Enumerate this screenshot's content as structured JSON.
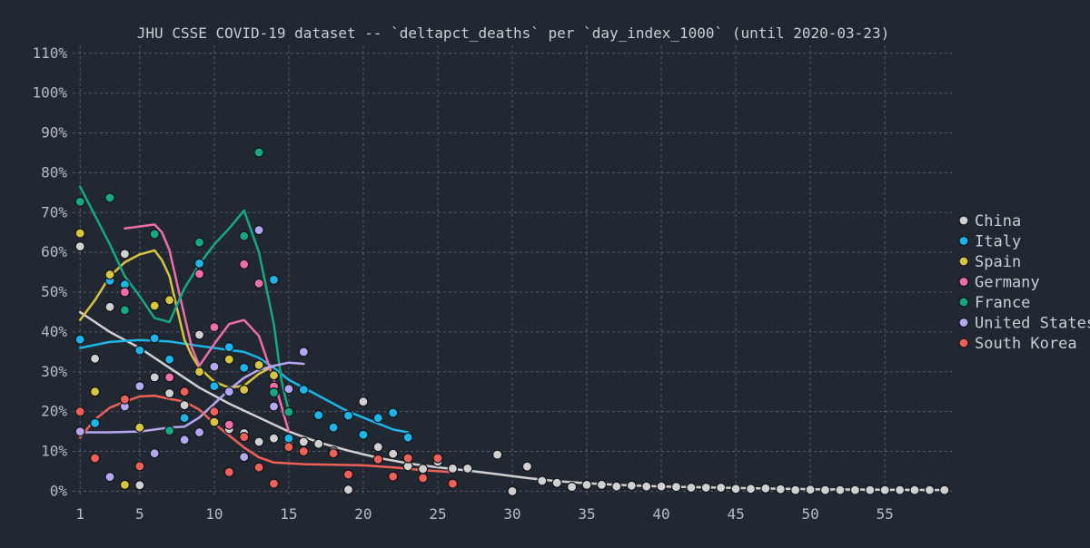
{
  "chart_data": {
    "type": "scatter",
    "title": "JHU CSSE COVID-19 dataset -- `deltapct_deaths` per `day_index_1000` (until 2020-03-23)",
    "xlabel": "",
    "ylabel": "",
    "xlim": [
      0.5,
      59.5
    ],
    "ylim": [
      -1.5,
      112
    ],
    "x_ticks": [
      1,
      5,
      10,
      15,
      20,
      25,
      30,
      35,
      40,
      45,
      50,
      55
    ],
    "y_ticks": [
      0,
      10,
      20,
      30,
      40,
      50,
      60,
      70,
      80,
      90,
      100,
      110
    ],
    "y_tick_labels": [
      "0%",
      "10%",
      "20%",
      "30%",
      "40%",
      "50%",
      "60%",
      "70%",
      "80%",
      "90%",
      "100%",
      "110%"
    ],
    "x_tick_labels": [
      "1",
      "5",
      "10",
      "15",
      "20",
      "25",
      "30",
      "35",
      "40",
      "45",
      "50",
      "55"
    ],
    "grid": true,
    "legend_position": "right",
    "series": [
      {
        "name": "China",
        "color": "#d0d0d0",
        "points": [
          [
            1,
            61.5
          ],
          [
            2,
            33.3
          ],
          [
            3,
            46.3
          ],
          [
            4,
            59.6
          ],
          [
            5,
            1.5
          ],
          [
            6,
            28.6
          ],
          [
            7,
            24.6
          ],
          [
            8,
            21.6
          ],
          [
            9,
            39.3
          ],
          [
            10,
            17.3
          ],
          [
            11,
            15.6
          ],
          [
            12,
            14.6
          ],
          [
            13,
            12.4
          ],
          [
            14,
            13.3
          ],
          [
            15,
            12
          ],
          [
            16,
            12.4
          ],
          [
            17,
            11.9
          ],
          [
            18,
            10
          ],
          [
            19,
            0.4
          ],
          [
            20,
            22.5
          ],
          [
            21,
            11.1
          ],
          [
            22,
            9.4
          ],
          [
            23,
            6.3
          ],
          [
            24,
            5.6
          ],
          [
            25,
            7.4
          ],
          [
            26,
            5.7
          ],
          [
            27,
            5.7
          ],
          [
            29,
            9.2
          ],
          [
            30,
            0
          ],
          [
            31,
            6.2
          ],
          [
            32,
            2.6
          ],
          [
            33,
            2.1
          ],
          [
            34,
            1.1
          ],
          [
            35,
            1.6
          ],
          [
            36,
            1.6
          ],
          [
            37,
            1.2
          ],
          [
            38,
            1.4
          ],
          [
            39,
            1.2
          ],
          [
            40,
            1.2
          ],
          [
            41,
            1.1
          ],
          [
            42,
            0.9
          ],
          [
            43,
            0.9
          ],
          [
            44,
            0.9
          ],
          [
            45,
            0.6
          ],
          [
            46,
            0.6
          ],
          [
            47,
            0.7
          ],
          [
            48,
            0.5
          ],
          [
            49,
            0.3
          ],
          [
            50,
            0.4
          ],
          [
            51,
            0.3
          ],
          [
            52,
            0.3
          ],
          [
            53,
            0.3
          ],
          [
            54,
            0.3
          ],
          [
            55,
            0.3
          ],
          [
            56,
            0.3
          ],
          [
            57,
            0.3
          ],
          [
            58,
            0.3
          ],
          [
            59,
            0.3
          ]
        ],
        "trend": [
          [
            1,
            45
          ],
          [
            3,
            40
          ],
          [
            5,
            36
          ],
          [
            7,
            31
          ],
          [
            9,
            26
          ],
          [
            11,
            22
          ],
          [
            13,
            18.5
          ],
          [
            15,
            15
          ],
          [
            17,
            12.3
          ],
          [
            19,
            10.2
          ],
          [
            21,
            8.4
          ],
          [
            23,
            7
          ],
          [
            25,
            6
          ],
          [
            27,
            5.2
          ],
          [
            29,
            4.3
          ],
          [
            31,
            3.3
          ],
          [
            33,
            2.5
          ],
          [
            35,
            2
          ],
          [
            37,
            1.6
          ],
          [
            40,
            1.2
          ],
          [
            45,
            0.8
          ],
          [
            50,
            0.5
          ],
          [
            55,
            0.4
          ],
          [
            59,
            0.3
          ]
        ]
      },
      {
        "name": "Italy",
        "color": "#1cb5ea",
        "points": [
          [
            1,
            38.1
          ],
          [
            2,
            17.1
          ],
          [
            3,
            52.9
          ],
          [
            4,
            51.9
          ],
          [
            5,
            35.4
          ],
          [
            6,
            38.4
          ],
          [
            7,
            33.1
          ],
          [
            8,
            18.4
          ],
          [
            9,
            57.2
          ],
          [
            10,
            26.4
          ],
          [
            11,
            36.2
          ],
          [
            12,
            31
          ],
          [
            13,
            31.7
          ],
          [
            14,
            53.1
          ],
          [
            15,
            13.3
          ],
          [
            16,
            25.5
          ],
          [
            17,
            19.1
          ],
          [
            18,
            16
          ],
          [
            19,
            19
          ],
          [
            20,
            14.2
          ],
          [
            21,
            18.4
          ],
          [
            22,
            19.7
          ],
          [
            23,
            13.5
          ]
        ],
        "trend": [
          [
            1,
            36
          ],
          [
            3,
            37.5
          ],
          [
            5,
            38
          ],
          [
            7,
            37.6
          ],
          [
            9,
            36.5
          ],
          [
            11,
            35.5
          ],
          [
            12,
            35
          ],
          [
            13,
            33.5
          ],
          [
            14,
            31
          ],
          [
            15,
            28
          ],
          [
            17,
            24
          ],
          [
            19,
            20
          ],
          [
            21,
            17
          ],
          [
            22,
            15.5
          ],
          [
            23,
            14.8
          ]
        ]
      },
      {
        "name": "Spain",
        "color": "#d7c540",
        "points": [
          [
            1,
            64.8
          ],
          [
            2,
            25
          ],
          [
            3,
            54.4
          ],
          [
            4,
            1.6
          ],
          [
            5,
            16
          ],
          [
            6,
            46.6
          ],
          [
            7,
            48
          ],
          [
            8,
            25
          ],
          [
            9,
            30
          ],
          [
            10,
            17.4
          ],
          [
            11,
            33.1
          ],
          [
            12,
            25.5
          ],
          [
            13,
            31.7
          ],
          [
            14,
            29.1
          ]
        ],
        "trend": [
          [
            1,
            43
          ],
          [
            2,
            48
          ],
          [
            3,
            54
          ],
          [
            4,
            57.5
          ],
          [
            5,
            59.5
          ],
          [
            6,
            60.5
          ],
          [
            6.5,
            58
          ],
          [
            7,
            54
          ],
          [
            7.5,
            46
          ],
          [
            8,
            38
          ],
          [
            8.5,
            34
          ],
          [
            9,
            31
          ],
          [
            10,
            27.5
          ],
          [
            11,
            26
          ],
          [
            12,
            26.5
          ],
          [
            13,
            29.5
          ],
          [
            14,
            31.5
          ]
        ]
      },
      {
        "name": "Germany",
        "color": "#ee6ea8",
        "points": [
          [
            4,
            50
          ],
          [
            7,
            28.6
          ],
          [
            9,
            54.6
          ],
          [
            10,
            41.2
          ],
          [
            11,
            16.7
          ],
          [
            12,
            57
          ],
          [
            13,
            52.2
          ],
          [
            14,
            26.3
          ],
          [
            15,
            11.1
          ]
        ],
        "trend": [
          [
            4,
            66
          ],
          [
            5,
            66.5
          ],
          [
            6,
            67
          ],
          [
            6.5,
            65
          ],
          [
            7,
            60.5
          ],
          [
            8,
            44
          ],
          [
            8.5,
            36
          ],
          [
            9,
            31.5
          ],
          [
            10,
            37
          ],
          [
            11,
            42
          ],
          [
            12,
            43
          ],
          [
            13,
            39
          ],
          [
            14,
            28
          ],
          [
            15,
            15
          ]
        ]
      },
      {
        "name": "France",
        "color": "#16a883",
        "points": [
          [
            1,
            72.7
          ],
          [
            3,
            73.7
          ],
          [
            4,
            45.5
          ],
          [
            6,
            64.6
          ],
          [
            7,
            15.2
          ],
          [
            9,
            62.5
          ],
          [
            12,
            64.1
          ],
          [
            13,
            85.1
          ],
          [
            14,
            24.8
          ],
          [
            15,
            19.9
          ]
        ],
        "trend": [
          [
            1,
            76.5
          ],
          [
            3,
            62
          ],
          [
            4,
            54
          ],
          [
            5,
            49
          ],
          [
            6,
            43.5
          ],
          [
            7,
            42.5
          ],
          [
            8,
            51
          ],
          [
            9,
            57
          ],
          [
            10,
            62
          ],
          [
            11,
            66
          ],
          [
            12,
            70.5
          ],
          [
            13,
            60
          ],
          [
            14,
            42
          ],
          [
            14.5,
            28
          ],
          [
            15,
            20
          ]
        ]
      },
      {
        "name": "United States",
        "color": "#b4a7f0",
        "points": [
          [
            1,
            15
          ],
          [
            3,
            3.6
          ],
          [
            4,
            21.3
          ],
          [
            5,
            26.4
          ],
          [
            6,
            9.5
          ],
          [
            8,
            12.9
          ],
          [
            9,
            14.8
          ],
          [
            10,
            31.3
          ],
          [
            11,
            25
          ],
          [
            12,
            8.6
          ],
          [
            13,
            65.6
          ],
          [
            14,
            21.3
          ],
          [
            15,
            25.7
          ],
          [
            16,
            35
          ]
        ],
        "trend": [
          [
            1,
            14.8
          ],
          [
            3,
            14.8
          ],
          [
            5,
            15
          ],
          [
            7,
            16
          ],
          [
            8,
            16.2
          ],
          [
            9,
            18.5
          ],
          [
            10,
            22
          ],
          [
            11,
            25.5
          ],
          [
            12,
            28.5
          ],
          [
            13,
            30.5
          ],
          [
            14,
            31.5
          ],
          [
            15,
            32.3
          ],
          [
            16,
            32
          ]
        ]
      },
      {
        "name": "South Korea",
        "color": "#f06058",
        "points": [
          [
            1,
            20
          ],
          [
            2,
            8.3
          ],
          [
            4,
            23.1
          ],
          [
            5,
            6.3
          ],
          [
            8,
            25
          ],
          [
            10,
            20
          ],
          [
            11,
            4.8
          ],
          [
            12,
            13.6
          ],
          [
            13,
            6
          ],
          [
            14,
            1.9
          ],
          [
            15,
            11.1
          ],
          [
            16,
            10
          ],
          [
            18,
            9.5
          ],
          [
            19,
            4.2
          ],
          [
            21,
            8
          ],
          [
            22,
            3.7
          ],
          [
            23,
            8.3
          ],
          [
            24,
            3.3
          ],
          [
            25,
            8.3
          ],
          [
            26,
            1.9
          ]
        ],
        "trend": [
          [
            1,
            13.5
          ],
          [
            2,
            18
          ],
          [
            3,
            21
          ],
          [
            4,
            22.5
          ],
          [
            5,
            23.8
          ],
          [
            6,
            24
          ],
          [
            7,
            23.2
          ],
          [
            8,
            22.5
          ],
          [
            9,
            20.5
          ],
          [
            10,
            17
          ],
          [
            11,
            14
          ],
          [
            12,
            11
          ],
          [
            13,
            8.5
          ],
          [
            14,
            7.2
          ],
          [
            16,
            6.8
          ],
          [
            20,
            6.5
          ],
          [
            22,
            6
          ],
          [
            24,
            5.3
          ],
          [
            26,
            4.8
          ]
        ]
      }
    ]
  }
}
